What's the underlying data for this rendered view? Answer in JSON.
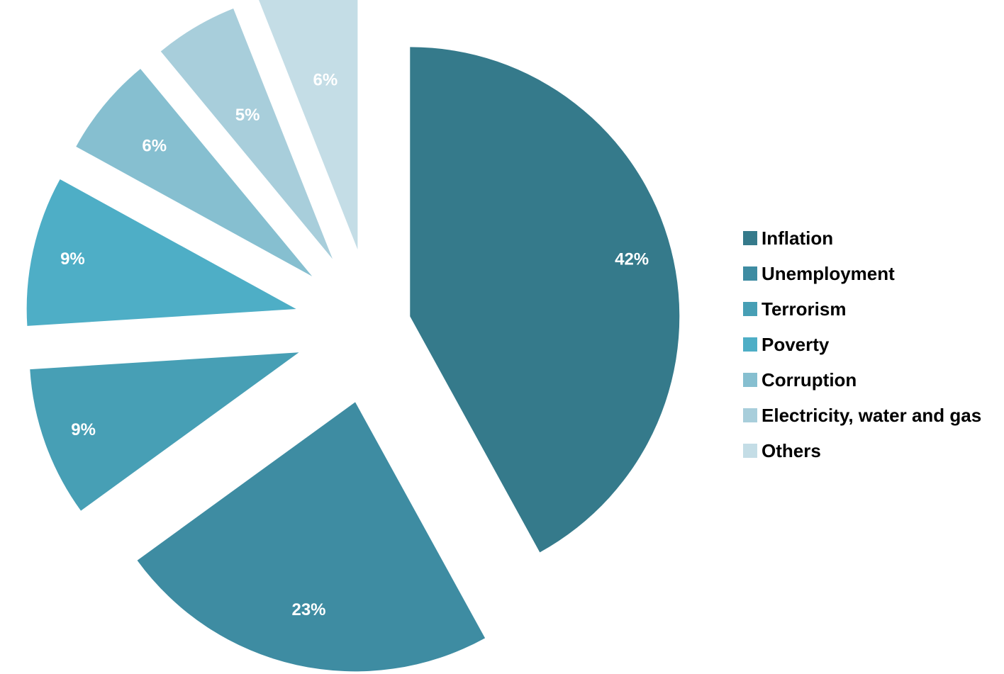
{
  "chart_data": {
    "type": "pie",
    "title": "",
    "categories": [
      "Inflation",
      "Unemployment",
      "Terrorism",
      "Poverty",
      "Corruption",
      "Electricity, water and gas",
      "Others"
    ],
    "values": [
      42,
      23,
      9,
      9,
      6,
      5,
      6
    ],
    "value_labels": [
      "42%",
      "23%",
      "9%",
      "9%",
      "6%",
      "5%",
      "6%"
    ],
    "colors": [
      "#357a8b",
      "#3e8ca2",
      "#479fb5",
      "#4eaec6",
      "#86bfd0",
      "#a8cedb",
      "#c4dde6"
    ],
    "exploded": true,
    "start_angle": "12 o'clock, clockwise",
    "legend_position": "right"
  }
}
